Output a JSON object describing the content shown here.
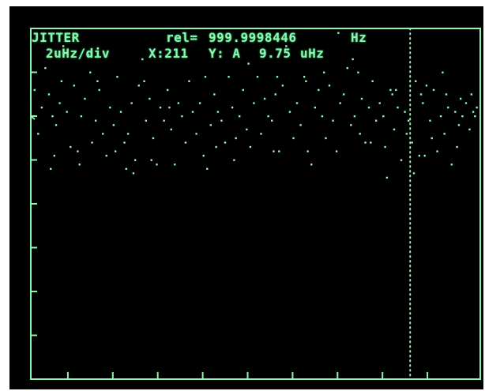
{
  "header": {
    "mode": "JITTER",
    "rel_label": "rel=",
    "rel_value": "999.9998446",
    "rel_unit": "Hz"
  },
  "status": {
    "scale": "2uHz/div",
    "cursor_x": "X:211",
    "cursor_y": "Y: A",
    "cursor_value": "9.75",
    "cursor_unit": "uHz"
  },
  "colors": {
    "phosphor": "#8ef5b0",
    "background": "#000000"
  },
  "chart_data": {
    "type": "scatter",
    "xlim": [
      0,
      250
    ],
    "ylim": [
      -1,
      7
    ],
    "x_divisions": 9,
    "y_divisions": 7,
    "cursor_x": 211,
    "reference_y": 5,
    "grid": false,
    "points": [
      [
        2,
        5.6
      ],
      [
        4,
        4.6
      ],
      [
        6,
        5.2
      ],
      [
        8,
        6.1
      ],
      [
        10,
        5.5
      ],
      [
        12,
        5.0
      ],
      [
        14,
        4.8
      ],
      [
        16,
        5.3
      ],
      [
        18,
        6.6
      ],
      [
        20,
        5.1
      ],
      [
        22,
        4.3
      ],
      [
        24,
        5.7
      ],
      [
        26,
        4.2
      ],
      [
        28,
        5.0
      ],
      [
        30,
        5.4
      ],
      [
        32,
        6.4
      ],
      [
        34,
        4.4
      ],
      [
        36,
        4.9
      ],
      [
        38,
        5.6
      ],
      [
        40,
        4.6
      ],
      [
        42,
        4.1
      ],
      [
        44,
        5.2
      ],
      [
        46,
        4.8
      ],
      [
        48,
        5.9
      ],
      [
        50,
        5.1
      ],
      [
        52,
        4.4
      ],
      [
        54,
        4.6
      ],
      [
        56,
        5.3
      ],
      [
        58,
        4.0
      ],
      [
        60,
        5.7
      ],
      [
        62,
        6.3
      ],
      [
        64,
        4.9
      ],
      [
        66,
        5.4
      ],
      [
        68,
        4.5
      ],
      [
        70,
        3.9
      ],
      [
        72,
        5.2
      ],
      [
        74,
        4.9
      ],
      [
        76,
        5.6
      ],
      [
        78,
        4.7
      ],
      [
        80,
        3.9
      ],
      [
        82,
        5.3
      ],
      [
        84,
        5.0
      ],
      [
        86,
        4.4
      ],
      [
        88,
        5.8
      ],
      [
        90,
        5.1
      ],
      [
        92,
        4.6
      ],
      [
        94,
        5.3
      ],
      [
        96,
        4.1
      ],
      [
        98,
        3.8
      ],
      [
        100,
        4.8
      ],
      [
        102,
        5.5
      ],
      [
        104,
        5.1
      ],
      [
        106,
        4.9
      ],
      [
        108,
        4.4
      ],
      [
        110,
        5.9
      ],
      [
        112,
        5.2
      ],
      [
        114,
        4.5
      ],
      [
        116,
        5.0
      ],
      [
        118,
        5.6
      ],
      [
        120,
        4.7
      ],
      [
        122,
        4.3
      ],
      [
        124,
        5.3
      ],
      [
        126,
        5.9
      ],
      [
        128,
        4.6
      ],
      [
        130,
        5.4
      ],
      [
        132,
        5.0
      ],
      [
        134,
        4.9
      ],
      [
        136,
        5.5
      ],
      [
        138,
        4.2
      ],
      [
        140,
        5.7
      ],
      [
        142,
        6.6
      ],
      [
        144,
        5.1
      ],
      [
        146,
        4.5
      ],
      [
        148,
        5.3
      ],
      [
        150,
        4.8
      ],
      [
        152,
        5.9
      ],
      [
        154,
        4.2
      ],
      [
        156,
        3.9
      ],
      [
        158,
        5.2
      ],
      [
        160,
        5.6
      ],
      [
        162,
        5.0
      ],
      [
        164,
        4.5
      ],
      [
        166,
        5.7
      ],
      [
        168,
        4.9
      ],
      [
        170,
        4.2
      ],
      [
        172,
        5.3
      ],
      [
        174,
        5.5
      ],
      [
        176,
        6.1
      ],
      [
        178,
        4.8
      ],
      [
        180,
        5.0
      ],
      [
        182,
        6.0
      ],
      [
        184,
        5.4
      ],
      [
        186,
        4.4
      ],
      [
        188,
        5.2
      ],
      [
        190,
        5.8
      ],
      [
        192,
        4.9
      ],
      [
        194,
        5.3
      ],
      [
        196,
        5.0
      ],
      [
        198,
        3.6
      ],
      [
        200,
        5.6
      ],
      [
        202,
        4.7
      ],
      [
        204,
        5.2
      ],
      [
        206,
        4.0
      ],
      [
        208,
        5.1
      ],
      [
        210,
        4.9
      ],
      [
        212,
        4.4
      ],
      [
        214,
        5.8
      ],
      [
        216,
        4.1
      ],
      [
        218,
        5.3
      ],
      [
        220,
        5.7
      ],
      [
        222,
        4.9
      ],
      [
        224,
        5.6
      ],
      [
        226,
        4.2
      ],
      [
        228,
        5.0
      ],
      [
        230,
        4.6
      ],
      [
        232,
        5.2
      ],
      [
        234,
        3.9
      ],
      [
        236,
        5.1
      ],
      [
        238,
        4.8
      ],
      [
        240,
        5.0
      ],
      [
        242,
        5.3
      ],
      [
        244,
        4.7
      ],
      [
        246,
        5.1
      ],
      [
        248,
        5.2
      ],
      [
        11,
        3.8
      ],
      [
        13,
        4.1
      ],
      [
        27,
        3.9
      ],
      [
        33,
        6.0
      ],
      [
        53,
        3.8
      ],
      [
        57,
        3.7
      ],
      [
        67,
        4.0
      ],
      [
        103,
        4.3
      ],
      [
        121,
        6.2
      ],
      [
        135,
        4.2
      ],
      [
        163,
        6.0
      ],
      [
        171,
        6.9
      ],
      [
        179,
        6.3
      ],
      [
        189,
        4.4
      ],
      [
        197,
        4.3
      ],
      [
        203,
        5.6
      ],
      [
        213,
        3.7
      ],
      [
        219,
        4.1
      ],
      [
        229,
        6.0
      ],
      [
        237,
        4.3
      ],
      [
        17,
        5.8
      ],
      [
        37,
        5.8
      ],
      [
        47,
        4.2
      ],
      [
        63,
        5.8
      ],
      [
        77,
        5.2
      ],
      [
        97,
        5.9
      ],
      [
        113,
        4.0
      ],
      [
        137,
        5.9
      ],
      [
        153,
        5.8
      ],
      [
        183,
        4.6
      ],
      [
        201,
        5.5
      ],
      [
        209,
        4.6
      ],
      [
        217,
        5.5
      ],
      [
        223,
        4.5
      ],
      [
        231,
        5.5
      ],
      [
        239,
        5.4
      ],
      [
        245,
        5.5
      ],
      [
        247,
        5.0
      ]
    ]
  }
}
